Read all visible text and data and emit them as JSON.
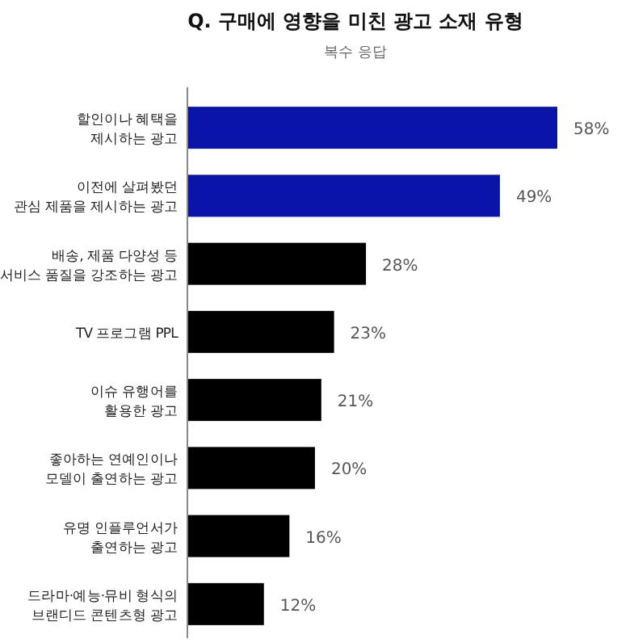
{
  "chart_data": {
    "type": "bar",
    "orientation": "horizontal",
    "title": "Q. 구매에 영향을 미친 광고 소재 유형",
    "subtitle": "복수 응답",
    "categories": [
      "할인이나 혜택을\n제시하는 광고",
      "이전에 살펴봤던\n관심 제품을 제시하는 광고",
      "배송, 제품 다양성 등\n서비스 품질을 강조하는 광고",
      "TV 프로그램 PPL",
      "이슈 유행어를\n활용한 광고",
      "좋아하는 연예인이나\n모델이 출연하는 광고",
      "유명 인플루언서가\n출연하는 광고",
      "드라마·예능·뮤비 형식의\n브랜디드 콘텐츠형 광고"
    ],
    "values": [
      58,
      49,
      28,
      23,
      21,
      20,
      16,
      12
    ],
    "colors": [
      "#0a14a8",
      "#0a14a8",
      "#000000",
      "#000000",
      "#000000",
      "#000000",
      "#000000",
      "#000000"
    ],
    "value_labels": [
      "58%",
      "49%",
      "28%",
      "23%",
      "21%",
      "20%",
      "16%",
      "12%"
    ]
  }
}
